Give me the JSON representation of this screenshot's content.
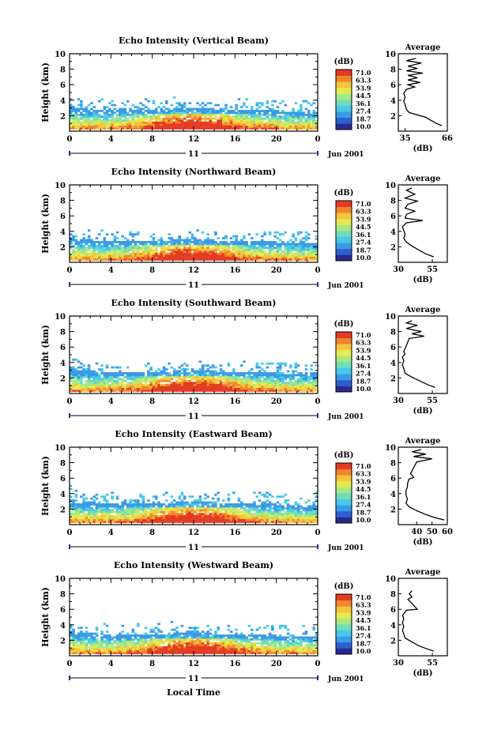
{
  "figure": {
    "month_label": "Jun 2001",
    "day_label": "11",
    "x_label": "Local Time",
    "y_label": "Height (km)",
    "unit_label": "(dB)",
    "avg_title": "Average",
    "avg_x_label": "(dB)"
  },
  "colors": {
    "scale": [
      "#2a2a8c",
      "#2c5fd0",
      "#3b9ae6",
      "#48c8e8",
      "#6fdcbe",
      "#a8e884",
      "#e4ea52",
      "#f6c43a",
      "#f0862c",
      "#e43c24"
    ],
    "axis": "#000000",
    "profile": "#000000"
  },
  "chart_data": [
    {
      "type": "heatmap",
      "title": "Echo Intensity (Vertical Beam)",
      "xlim": [
        0,
        24
      ],
      "ylim": [
        0,
        10
      ],
      "x_ticks": [
        "0",
        "4",
        "8",
        "12",
        "16",
        "20",
        "0"
      ],
      "y_ticks": [
        "2",
        "4",
        "6",
        "8",
        "10"
      ],
      "colorbar_ticks": [
        "71.0",
        "63.3",
        "53.9",
        "44.5",
        "36.1",
        "27.4",
        "18.7",
        "10.0"
      ],
      "avg_profile": {
        "xlim": [
          30,
          66
        ],
        "x_ticks": [
          "35",
          "66"
        ],
        "points": [
          [
            62,
            0.7
          ],
          [
            58,
            1.0
          ],
          [
            54,
            1.4
          ],
          [
            50,
            1.8
          ],
          [
            44,
            2.1
          ],
          [
            38,
            2.4
          ],
          [
            36,
            2.8
          ],
          [
            35,
            3.4
          ],
          [
            34,
            3.9
          ],
          [
            35,
            4.4
          ],
          [
            34,
            4.9
          ],
          [
            36,
            5.4
          ],
          [
            42,
            5.7
          ],
          [
            37,
            6.0
          ],
          [
            46,
            6.3
          ],
          [
            37,
            6.6
          ],
          [
            44,
            6.9
          ],
          [
            37,
            7.2
          ],
          [
            48,
            7.5
          ],
          [
            36,
            7.8
          ],
          [
            44,
            8.1
          ],
          [
            37,
            8.4
          ],
          [
            47,
            8.8
          ],
          [
            36,
            9.1
          ],
          [
            43,
            9.4
          ]
        ]
      }
    },
    {
      "type": "heatmap",
      "title": "Echo Intensity (Northward Beam)",
      "xlim": [
        0,
        24
      ],
      "ylim": [
        0,
        10
      ],
      "x_ticks": [
        "0",
        "4",
        "8",
        "12",
        "16",
        "20",
        "0"
      ],
      "y_ticks": [
        "2",
        "4",
        "6",
        "8",
        "10"
      ],
      "colorbar_ticks": [
        "71.0",
        "63.3",
        "53.9",
        "44.5",
        "36.1",
        "27.4",
        "18.7",
        "10.0"
      ],
      "avg_profile": {
        "xlim": [
          30,
          66
        ],
        "x_ticks": [
          "30",
          "55"
        ],
        "points": [
          [
            56,
            0.7
          ],
          [
            50,
            1.1
          ],
          [
            45,
            1.6
          ],
          [
            40,
            2.1
          ],
          [
            36,
            2.6
          ],
          [
            34,
            3.1
          ],
          [
            35,
            3.6
          ],
          [
            34,
            4.1
          ],
          [
            33,
            4.6
          ],
          [
            36,
            5.1
          ],
          [
            48,
            5.4
          ],
          [
            35,
            5.7
          ],
          [
            36,
            6.2
          ],
          [
            42,
            6.6
          ],
          [
            35,
            7.0
          ],
          [
            37,
            7.5
          ],
          [
            44,
            7.9
          ],
          [
            35,
            8.3
          ],
          [
            42,
            8.8
          ],
          [
            36,
            9.3
          ],
          [
            40,
            9.6
          ]
        ]
      }
    },
    {
      "type": "heatmap",
      "title": "Echo Intensity (Southward Beam)",
      "xlim": [
        0,
        24
      ],
      "ylim": [
        0,
        10
      ],
      "x_ticks": [
        "0",
        "4",
        "8",
        "12",
        "16",
        "20",
        "0"
      ],
      "y_ticks": [
        "2",
        "4",
        "6",
        "8",
        "10"
      ],
      "colorbar_ticks": [
        "71.0",
        "63.3",
        "53.9",
        "44.5",
        "36.1",
        "27.4",
        "18.7",
        "10.0"
      ],
      "avg_profile": {
        "xlim": [
          30,
          66
        ],
        "x_ticks": [
          "30",
          "55"
        ],
        "points": [
          [
            57,
            0.8
          ],
          [
            52,
            1.1
          ],
          [
            46,
            1.6
          ],
          [
            40,
            2.1
          ],
          [
            35,
            2.6
          ],
          [
            34,
            3.2
          ],
          [
            33,
            3.7
          ],
          [
            34,
            4.2
          ],
          [
            33,
            4.7
          ],
          [
            35,
            5.1
          ],
          [
            34,
            5.4
          ],
          [
            38,
            7.1
          ],
          [
            49,
            7.4
          ],
          [
            40,
            7.7
          ],
          [
            47,
            8.0
          ],
          [
            36,
            8.4
          ],
          [
            44,
            8.8
          ],
          [
            36,
            9.1
          ],
          [
            40,
            9.4
          ]
        ]
      }
    },
    {
      "type": "heatmap",
      "title": "Echo Intensity (Eastward Beam)",
      "xlim": [
        0,
        24
      ],
      "ylim": [
        0,
        10
      ],
      "x_ticks": [
        "0",
        "4",
        "8",
        "12",
        "16",
        "20",
        "0"
      ],
      "y_ticks": [
        "2",
        "4",
        "6",
        "8",
        "10"
      ],
      "colorbar_ticks": [
        "71.0",
        "63.3",
        "53.9",
        "44.5",
        "36.1",
        "27.4",
        "18.7",
        "10.0"
      ],
      "avg_profile": {
        "xlim": [
          28,
          60
        ],
        "x_ticks": [
          "40",
          "50",
          "60"
        ],
        "points": [
          [
            58,
            0.6
          ],
          [
            52,
            0.9
          ],
          [
            46,
            1.3
          ],
          [
            40,
            1.8
          ],
          [
            35,
            2.3
          ],
          [
            33,
            2.8
          ],
          [
            34,
            3.3
          ],
          [
            33,
            3.8
          ],
          [
            33,
            4.4
          ],
          [
            34,
            4.9
          ],
          [
            34,
            5.3
          ],
          [
            35,
            5.9
          ],
          [
            38,
            6.1
          ],
          [
            36,
            6.6
          ],
          [
            40,
            8.1
          ],
          [
            50,
            8.5
          ],
          [
            38,
            8.8
          ],
          [
            46,
            9.1
          ],
          [
            37,
            9.4
          ],
          [
            43,
            9.7
          ]
        ]
      }
    },
    {
      "type": "heatmap",
      "title": "Echo Intensity (Westward Beam)",
      "xlim": [
        0,
        24
      ],
      "ylim": [
        0,
        10
      ],
      "x_ticks": [
        "0",
        "4",
        "8",
        "12",
        "16",
        "20",
        "0"
      ],
      "y_ticks": [
        "2",
        "4",
        "6",
        "8",
        "10"
      ],
      "colorbar_ticks": [
        "71.0",
        "63.3",
        "53.9",
        "44.5",
        "36.1",
        "27.4",
        "18.7",
        "10.0"
      ],
      "avg_profile": {
        "xlim": [
          30,
          66
        ],
        "x_ticks": [
          "30",
          "55"
        ],
        "points": [
          [
            56,
            0.6
          ],
          [
            51,
            0.9
          ],
          [
            45,
            1.3
          ],
          [
            40,
            1.8
          ],
          [
            35,
            2.3
          ],
          [
            34,
            2.8
          ],
          [
            33,
            3.3
          ],
          [
            34,
            3.8
          ],
          [
            33,
            4.3
          ],
          [
            34,
            4.8
          ],
          [
            33,
            5.2
          ],
          [
            36,
            5.9
          ],
          [
            44,
            6.0
          ],
          [
            37,
            7.3
          ],
          [
            40,
            7.6
          ],
          [
            38,
            8.0
          ],
          [
            40,
            8.4
          ]
        ]
      }
    }
  ]
}
